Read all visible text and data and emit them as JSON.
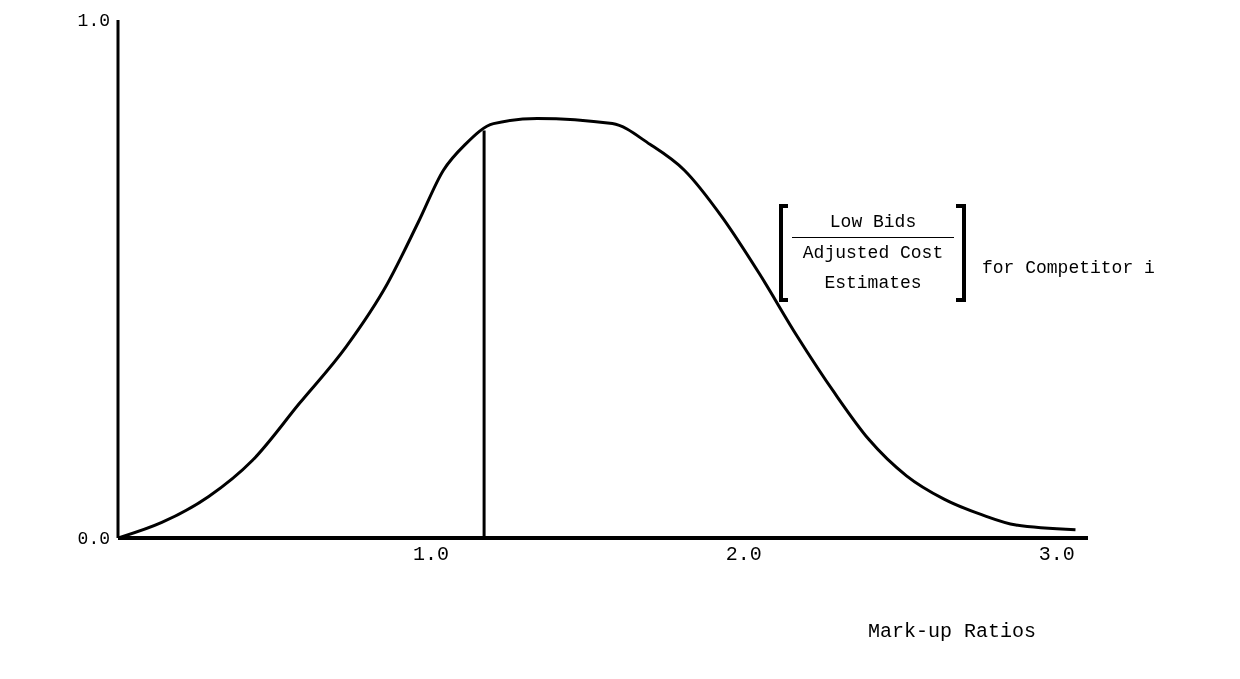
{
  "chart_data": {
    "type": "line",
    "xlabel": "Mark-up Ratios",
    "x": [
      0,
      0.14,
      0.29,
      0.43,
      0.58,
      0.73,
      0.86,
      0.96,
      1.04,
      1.11,
      1.2,
      1.34,
      1.58,
      1.7,
      1.81,
      1.93,
      2.05,
      2.17,
      2.29,
      2.4,
      2.52,
      2.64,
      2.76,
      2.87,
      3.06
    ],
    "series": [
      {
        "color": "#000000",
        "values": [
          0,
          0.03,
          0.08,
          0.15,
          0.26,
          0.37,
          0.49,
          0.61,
          0.71,
          0.76,
          0.8,
          0.81,
          0.8,
          0.76,
          0.71,
          0.62,
          0.51,
          0.39,
          0.28,
          0.19,
          0.12,
          0.075,
          0.045,
          0.025,
          0.016
        ]
      }
    ],
    "xlim": [
      0,
      3.1
    ],
    "xticks": [
      {
        "value": 1,
        "label": "1.0"
      },
      {
        "value": 2,
        "label": "2.0"
      },
      {
        "value": 3,
        "label": "3.0"
      }
    ],
    "ylim": [
      0,
      1
    ],
    "yticks": [
      {
        "value": 0,
        "label": "0.0"
      },
      {
        "value": 1,
        "label": "1.0"
      }
    ],
    "ref_lines": [
      {
        "axis": "x",
        "value": 1.17,
        "color": "#000000"
      }
    ],
    "annotations": [
      "Low Bids",
      "Adjusted Cost Estimates",
      "for Competitor i"
    ],
    "marker": "none",
    "line_style": "solid"
  }
}
